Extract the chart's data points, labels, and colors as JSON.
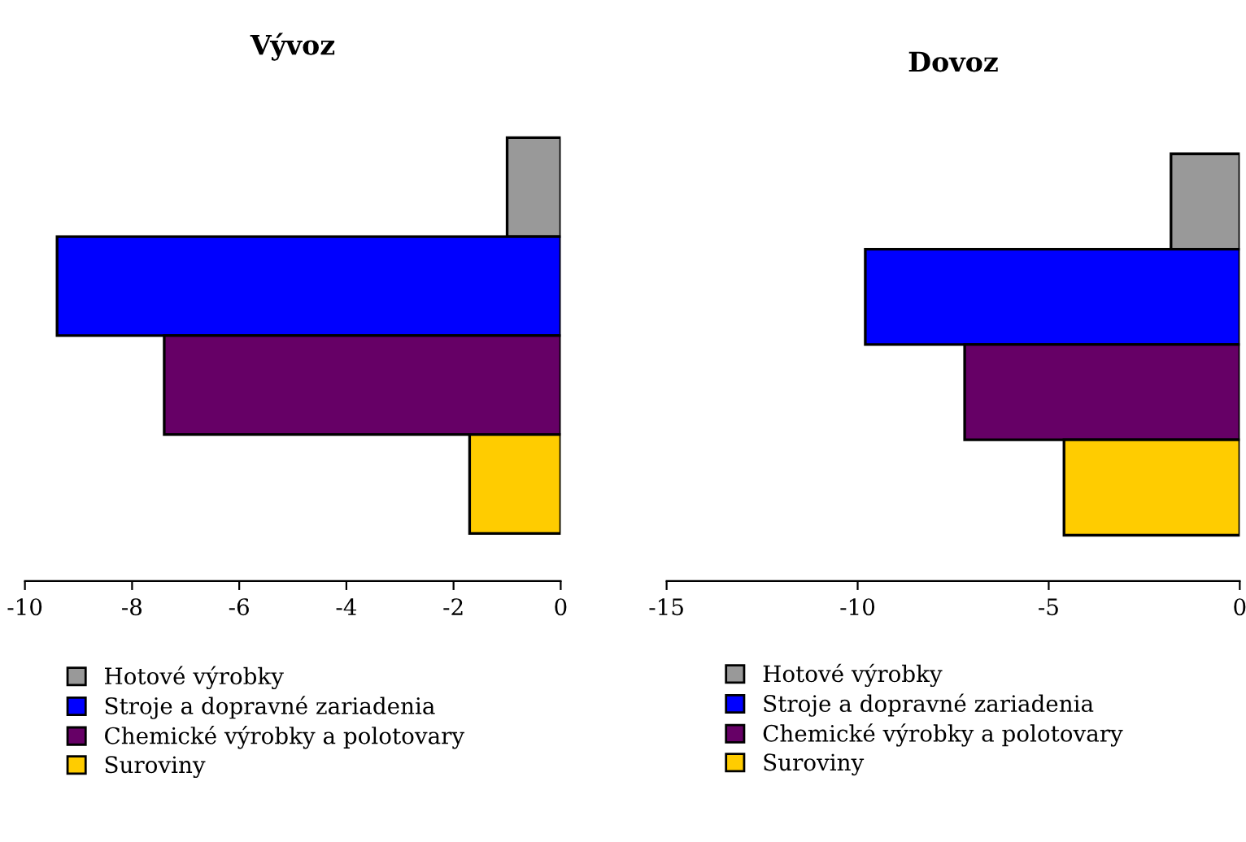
{
  "chart_data": [
    {
      "type": "bar",
      "title": "Vývoz",
      "orientation": "horizontal",
      "categories": [
        null
      ],
      "tick_labels": "x",
      "xlim": [
        -10,
        0
      ],
      "xticks": [
        -10,
        -8,
        -6,
        -4,
        -2,
        0
      ],
      "grid": false,
      "legend": "bottom",
      "series": [
        {
          "name": "Hotové výrobky",
          "color": "#999999",
          "values": [
            -1.0
          ]
        },
        {
          "name": "Stroje a dopravné zariadenia",
          "color": "#0000ff",
          "values": [
            -9.4
          ]
        },
        {
          "name": "Chemické výrobky a polotovary",
          "color": "#660066",
          "values": [
            -7.4
          ]
        },
        {
          "name": "Suroviny",
          "color": "#ffcc00",
          "values": [
            -1.7
          ]
        }
      ]
    },
    {
      "type": "bar",
      "title": "Dovoz",
      "orientation": "horizontal",
      "categories": [
        null
      ],
      "tick_labels": "x",
      "xlim": [
        -15,
        0
      ],
      "xticks": [
        -15,
        -10,
        -5,
        0
      ],
      "grid": false,
      "legend": "bottom",
      "series": [
        {
          "name": "Hotové výrobky",
          "color": "#999999",
          "values": [
            -1.8
          ]
        },
        {
          "name": "Stroje a dopravné zariadenia",
          "color": "#0000ff",
          "values": [
            -9.8
          ]
        },
        {
          "name": "Chemické výrobky a polotovary",
          "color": "#660066",
          "values": [
            -7.2
          ]
        },
        {
          "name": "Suroviny",
          "color": "#ffcc00",
          "values": [
            -4.6
          ]
        }
      ]
    }
  ]
}
